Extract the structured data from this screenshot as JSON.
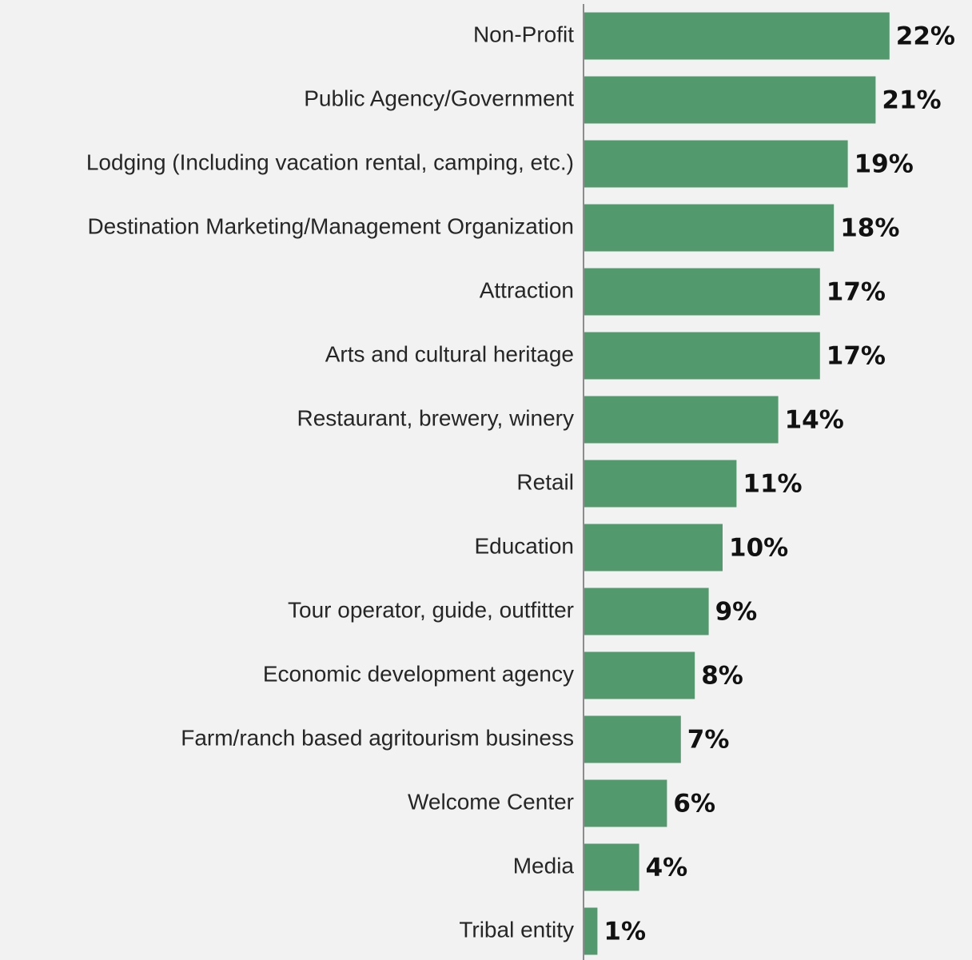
{
  "chart_data": {
    "type": "barh",
    "categories": [
      "Non-Profit",
      "Public Agency/Government",
      "Lodging (Including vacation rental, camping, etc.)",
      "Destination Marketing/Management Organization",
      "Attraction",
      "Arts and cultural heritage",
      "Restaurant, brewery, winery",
      "Retail",
      "Education",
      "Tour operator, guide, outfitter",
      "Economic development agency",
      "Farm/ranch based agritourism business",
      "Welcome Center",
      "Media",
      "Tribal entity"
    ],
    "values": [
      22,
      21,
      19,
      18,
      17,
      17,
      14,
      11,
      10,
      9,
      8,
      7,
      6,
      4,
      1
    ],
    "value_labels": [
      "22%",
      "21%",
      "19%",
      "18%",
      "17%",
      "17%",
      "14%",
      "11%",
      "10%",
      "9%",
      "8%",
      "7%",
      "6%",
      "4%",
      "1%"
    ],
    "color": "#529a6e",
    "xlim": [
      0,
      25
    ]
  }
}
